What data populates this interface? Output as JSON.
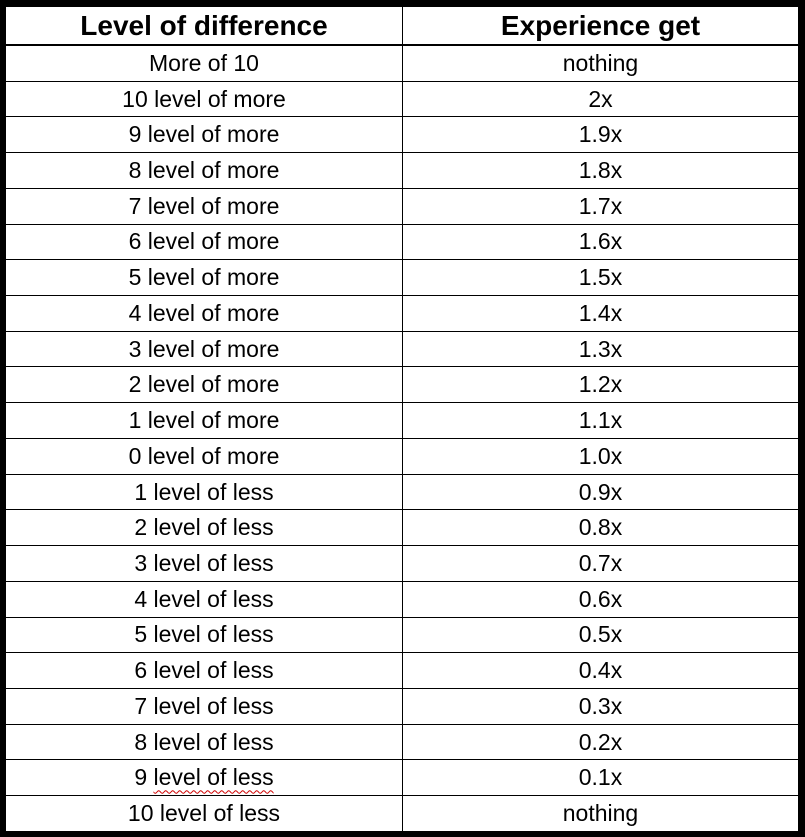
{
  "table": {
    "headers": [
      "Level of difference",
      "Experience get"
    ],
    "rows": [
      [
        "More of 10",
        "nothing"
      ],
      [
        "10 level of more",
        "2x"
      ],
      [
        "9 level of more",
        "1.9x"
      ],
      [
        "8 level of more",
        "1.8x"
      ],
      [
        "7 level of more",
        "1.7x"
      ],
      [
        "6 level of more",
        "1.6x"
      ],
      [
        "5 level of more",
        "1.5x"
      ],
      [
        "4 level of more",
        "1.4x"
      ],
      [
        "3 level of more",
        "1.3x"
      ],
      [
        "2 level of more",
        "1.2x"
      ],
      [
        "1 level of more",
        "1.1x"
      ],
      [
        "0 level of more",
        "1.0x"
      ],
      [
        "1 level of less",
        "0.9x"
      ],
      [
        "2 level of less",
        "0.8x"
      ],
      [
        "3 level of less",
        "0.7x"
      ],
      [
        "4 level of less",
        "0.6x"
      ],
      [
        "5 level of less",
        "0.5x"
      ],
      [
        "6 level of less",
        "0.4x"
      ],
      [
        "7 level of less",
        "0.3x"
      ],
      [
        "8 level of less",
        "0.2x"
      ],
      [
        "9 level of less",
        "0.1x"
      ],
      [
        "10 level of less",
        "nothing"
      ]
    ]
  }
}
